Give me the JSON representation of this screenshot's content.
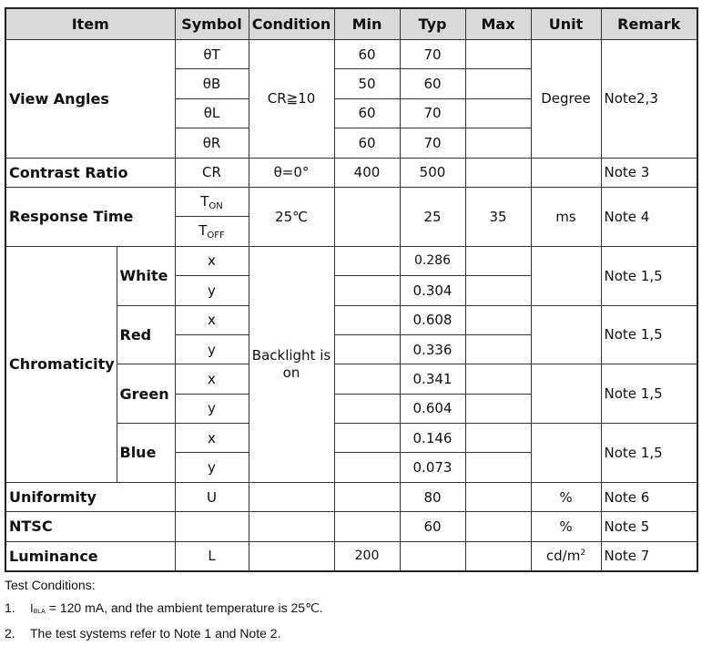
{
  "header": {
    "item": "Item",
    "symbol": "Symbol",
    "condition": "Condition",
    "min": "Min",
    "typ": "Typ",
    "max": "Max",
    "unit": "Unit",
    "remark": "Remark"
  },
  "view_angles": {
    "label": "View Angles",
    "condition": "CR≧10",
    "unit": "Degree",
    "remark": "Note2,3",
    "rows": [
      {
        "symbol": "θT",
        "min": "60",
        "typ": "70"
      },
      {
        "symbol": "θB",
        "min": "50",
        "typ": "60"
      },
      {
        "symbol": "θL",
        "min": "60",
        "typ": "70"
      },
      {
        "symbol": "θR",
        "min": "60",
        "typ": "70"
      }
    ]
  },
  "contrast_ratio": {
    "label": "Contrast Ratio",
    "symbol": "CR",
    "condition": "θ=0°",
    "min": "400",
    "typ": "500",
    "remark": "Note 3"
  },
  "response_time": {
    "label": "Response Time",
    "symbol_on": "T",
    "symbol_on_sub": "ON",
    "symbol_off": "T",
    "symbol_off_sub": "OFF",
    "condition": "25℃",
    "typ": "25",
    "max": "35",
    "unit": "ms",
    "remark": "Note 4"
  },
  "chromaticity": {
    "label": "Chromaticity",
    "condition": "Backlight is on",
    "colors": [
      {
        "name": "White",
        "x": "0.286",
        "y": "0.304",
        "remark": "Note 1,5"
      },
      {
        "name": "Red",
        "x": "0.608",
        "y": "0.336",
        "remark": "Note 1,5"
      },
      {
        "name": "Green",
        "x": "0.341",
        "y": "0.604",
        "remark": "Note 1,5"
      },
      {
        "name": "Blue",
        "x": "0.146",
        "y": "0.073",
        "remark": "Note 1,5"
      }
    ],
    "x_symbol": "x",
    "y_symbol": "y"
  },
  "uniformity": {
    "label": "Uniformity",
    "symbol": "U",
    "typ": "80",
    "unit": "%",
    "remark": "Note 6"
  },
  "ntsc": {
    "label": "NTSC",
    "typ": "60",
    "unit": "%",
    "remark": "Note 5"
  },
  "luminance": {
    "label": "Luminance",
    "symbol": "L",
    "min": "200",
    "unit": "cd/m",
    "unit_sup": "2",
    "remark": "Note 7"
  },
  "footer": {
    "title": "Test Conditions:",
    "n1": "1.",
    "i_label": "I",
    "i_sub": "BLA",
    "n1_text": "= 120 mA, and the ambient temperature is 25℃.",
    "n2": "2.",
    "n2_text": "The test systems refer to Note 1 and Note 2."
  }
}
